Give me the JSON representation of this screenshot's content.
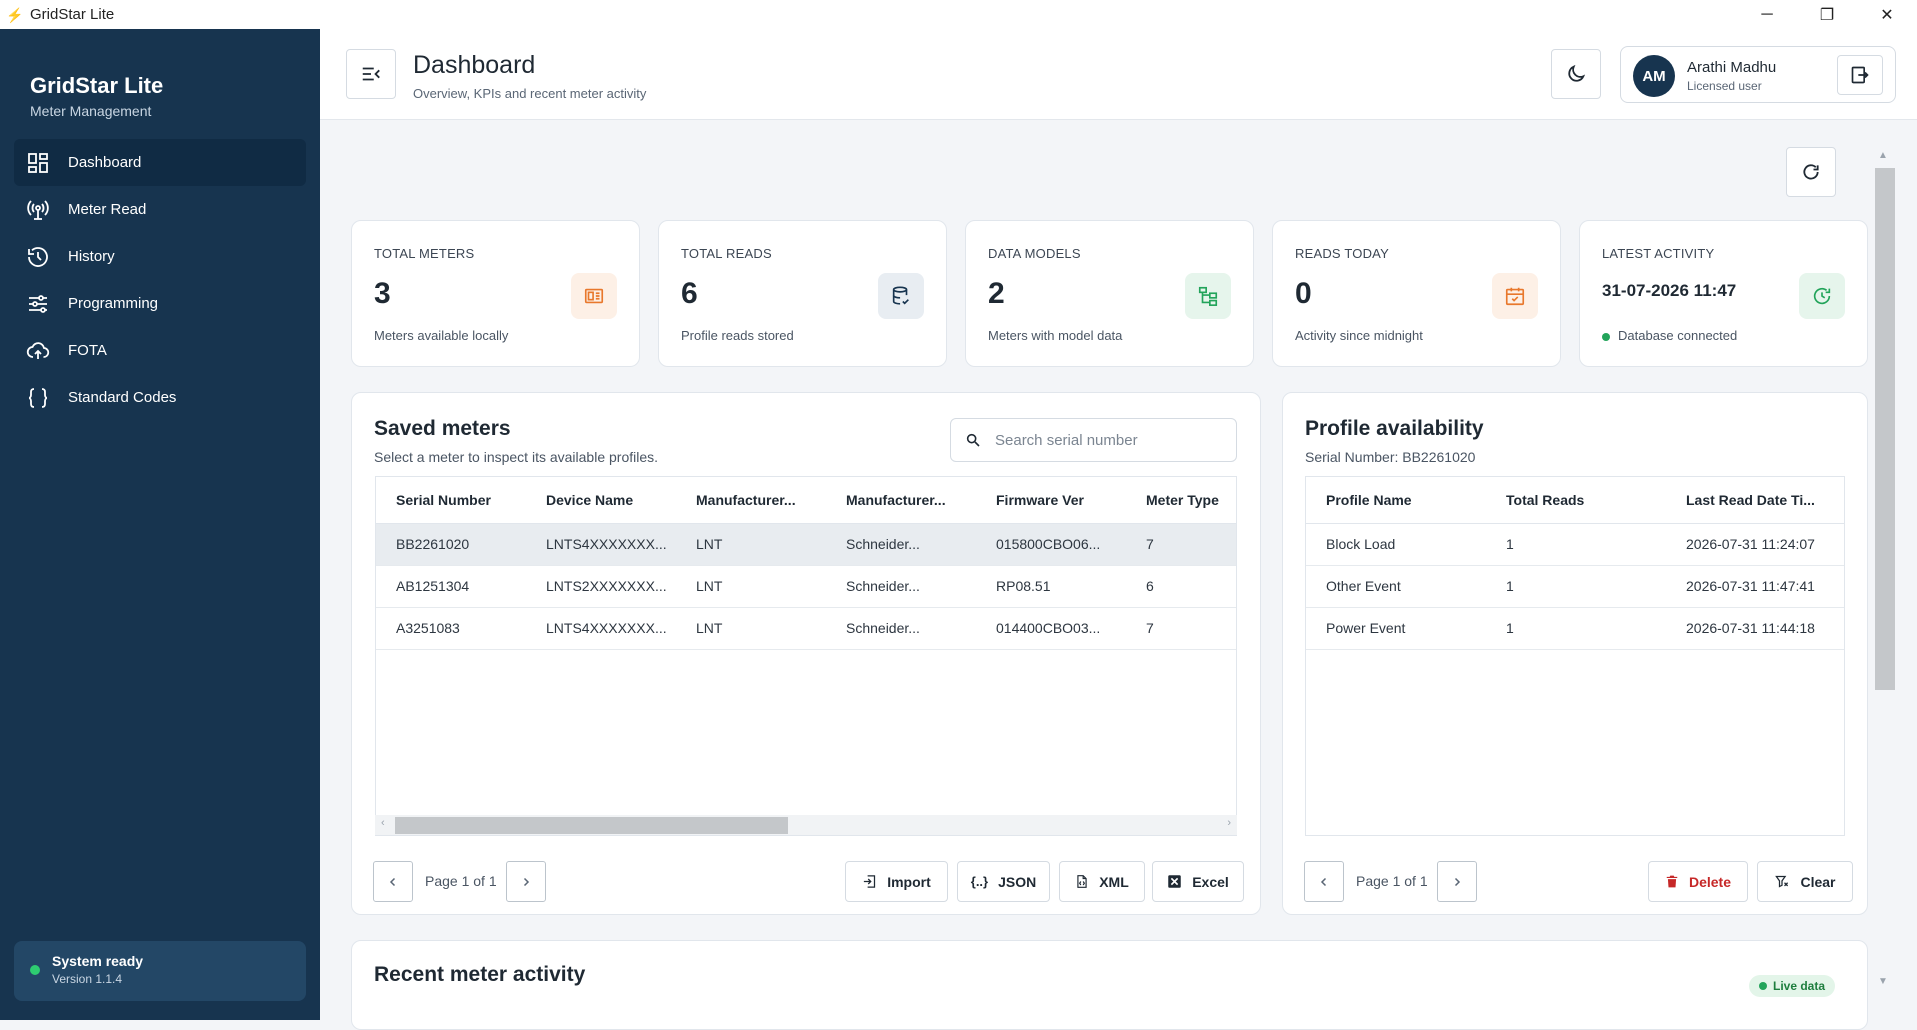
{
  "window": {
    "title": "GridStar Lite"
  },
  "sidebar": {
    "brand_name": "GridStar Lite",
    "brand_sub": "Meter Management",
    "items": [
      {
        "label": "Dashboard",
        "icon": "dashboard-icon"
      },
      {
        "label": "Meter Read",
        "icon": "meter-read-icon"
      },
      {
        "label": "History",
        "icon": "history-icon"
      },
      {
        "label": "Programming",
        "icon": "sliders-icon"
      },
      {
        "label": "FOTA",
        "icon": "cloud-upload-icon"
      },
      {
        "label": "Standard Codes",
        "icon": "braces-icon"
      }
    ],
    "status": {
      "text": "System ready",
      "version": "Version 1.1.4"
    }
  },
  "header": {
    "title": "Dashboard",
    "subtitle": "Overview, KPIs and recent meter activity",
    "user": {
      "initials": "AM",
      "name": "Arathi Madhu",
      "role": "Licensed user"
    }
  },
  "kpis": [
    {
      "label": "TOTAL METERS",
      "value": "3",
      "desc": "Meters available locally",
      "icon": "meter-icon",
      "color": "#e8782c"
    },
    {
      "label": "TOTAL READS",
      "value": "6",
      "desc": "Profile reads stored",
      "icon": "database-icon",
      "color": "#17344f"
    },
    {
      "label": "DATA MODELS",
      "value": "2",
      "desc": "Meters with model data",
      "icon": "tree-icon",
      "color": "#22a45a"
    },
    {
      "label": "READS TODAY",
      "value": "0",
      "desc": "Activity since midnight",
      "icon": "calendar-icon",
      "color": "#e8782c"
    },
    {
      "label": "LATEST ACTIVITY",
      "value": "31-07-2026 11:47",
      "desc": "Database connected",
      "icon": "clock-refresh-icon",
      "color": "#22a45a"
    }
  ],
  "saved_meters": {
    "title": "Saved meters",
    "subtitle": "Select a meter to inspect its available profiles.",
    "search_placeholder": "Search serial number",
    "columns": [
      "Serial Number",
      "Device Name",
      "Manufacturer...",
      "Manufacturer...",
      "Firmware Ver",
      "Meter Type"
    ],
    "rows": [
      [
        "BB2261020",
        "LNTS4XXXXXXX...",
        "LNT",
        "Schneider...",
        "015800CBO06...",
        "7"
      ],
      [
        "AB1251304",
        "LNTS2XXXXXXX...",
        "LNT",
        "Schneider...",
        "RP08.51",
        "6"
      ],
      [
        "A3251083",
        "LNTS4XXXXXXX...",
        "LNT",
        "Schneider...",
        "014400CBO03...",
        "7"
      ]
    ],
    "page_text": "Page 1 of 1",
    "actions": {
      "import": "Import",
      "json": "JSON",
      "xml": "XML",
      "excel": "Excel"
    }
  },
  "profile_availability": {
    "title": "Profile availability",
    "subtitle": "Serial Number: BB2261020",
    "columns": [
      "Profile Name",
      "Total Reads",
      "Last Read Date Ti..."
    ],
    "rows": [
      [
        "Block Load",
        "1",
        "2026-07-31 11:24:07"
      ],
      [
        "Other Event",
        "1",
        "2026-07-31 11:47:41"
      ],
      [
        "Power Event",
        "1",
        "2026-07-31 11:44:18"
      ]
    ],
    "page_text": "Page 1 of 1",
    "actions": {
      "delete": "Delete",
      "clear": "Clear"
    }
  },
  "recent_activity": {
    "title": "Recent meter activity",
    "badge": "Live data"
  }
}
